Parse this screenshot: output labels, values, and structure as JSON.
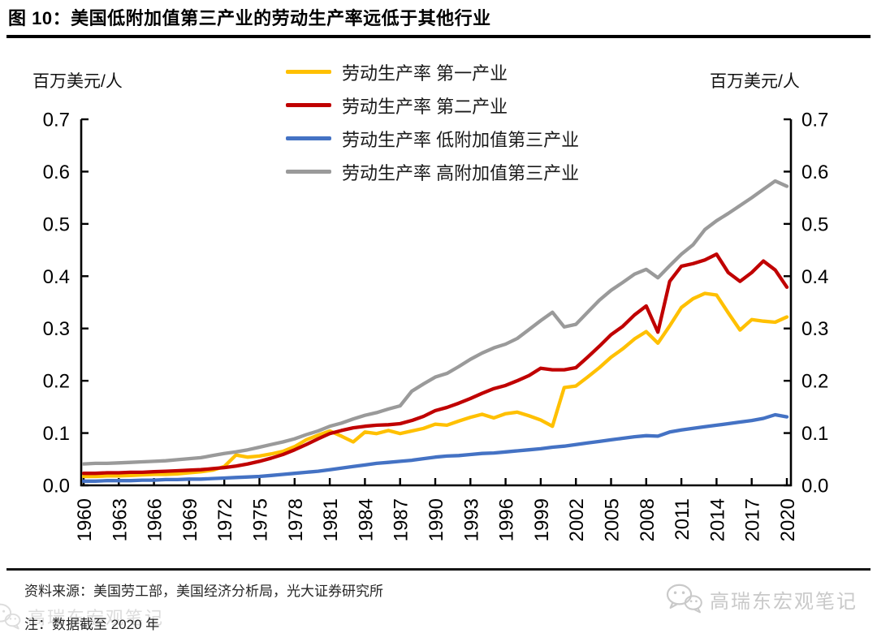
{
  "header": {
    "title": "图 10：美国低附加值第三产业的劳动生产率远低于其他行业"
  },
  "chart": {
    "left_unit": "百万美元/人",
    "right_unit": "百万美元/人"
  },
  "chart_data": {
    "type": "line",
    "title": "美国低附加值第三产业的劳动生产率远低于其他行业",
    "ylabel": "百万美元/人",
    "ylim": [
      0,
      0.7
    ],
    "ytick_step": 0.1,
    "x_label_every": 3,
    "grid": false,
    "legend_position": "top-center",
    "x": [
      1960,
      1961,
      1962,
      1963,
      1964,
      1965,
      1966,
      1967,
      1968,
      1969,
      1970,
      1971,
      1972,
      1973,
      1974,
      1975,
      1976,
      1977,
      1978,
      1979,
      1980,
      1981,
      1982,
      1983,
      1984,
      1985,
      1986,
      1987,
      1988,
      1989,
      1990,
      1991,
      1992,
      1993,
      1994,
      1995,
      1996,
      1997,
      1998,
      1999,
      2000,
      2001,
      2002,
      2003,
      2004,
      2005,
      2006,
      2007,
      2008,
      2009,
      2010,
      2011,
      2012,
      2013,
      2014,
      2015,
      2016,
      2017,
      2018,
      2019,
      2020
    ],
    "series": [
      {
        "id": "primary",
        "name": "劳动生产率 第一产业",
        "color": "#FFC000",
        "values": [
          0.017,
          0.017,
          0.018,
          0.018,
          0.019,
          0.02,
          0.021,
          0.021,
          0.022,
          0.024,
          0.026,
          0.029,
          0.036,
          0.058,
          0.054,
          0.056,
          0.06,
          0.065,
          0.074,
          0.087,
          0.096,
          0.104,
          0.094,
          0.083,
          0.102,
          0.099,
          0.105,
          0.099,
          0.104,
          0.109,
          0.117,
          0.115,
          0.123,
          0.13,
          0.136,
          0.129,
          0.137,
          0.14,
          0.133,
          0.125,
          0.113,
          0.187,
          0.19,
          0.207,
          0.225,
          0.245,
          0.261,
          0.28,
          0.294,
          0.272,
          0.305,
          0.34,
          0.357,
          0.367,
          0.364,
          0.33,
          0.297,
          0.317,
          0.314,
          0.312,
          0.322
        ]
      },
      {
        "id": "secondary",
        "name": "劳动生产率 第二产业",
        "color": "#C00000",
        "values": [
          0.023,
          0.023,
          0.024,
          0.024,
          0.025,
          0.025,
          0.026,
          0.027,
          0.028,
          0.029,
          0.03,
          0.032,
          0.034,
          0.037,
          0.041,
          0.046,
          0.052,
          0.059,
          0.068,
          0.078,
          0.089,
          0.099,
          0.105,
          0.11,
          0.113,
          0.115,
          0.116,
          0.118,
          0.124,
          0.132,
          0.143,
          0.149,
          0.157,
          0.166,
          0.176,
          0.185,
          0.191,
          0.2,
          0.21,
          0.224,
          0.221,
          0.221,
          0.225,
          0.245,
          0.266,
          0.288,
          0.304,
          0.326,
          0.343,
          0.293,
          0.39,
          0.419,
          0.424,
          0.431,
          0.442,
          0.407,
          0.39,
          0.407,
          0.429,
          0.412,
          0.379
        ]
      },
      {
        "id": "tertiary-low",
        "name": "劳动生产率 低附加值第三产业",
        "color": "#4472C4",
        "values": [
          0.008,
          0.008,
          0.009,
          0.009,
          0.009,
          0.01,
          0.01,
          0.011,
          0.011,
          0.012,
          0.012,
          0.013,
          0.014,
          0.015,
          0.016,
          0.017,
          0.019,
          0.021,
          0.023,
          0.025,
          0.027,
          0.03,
          0.033,
          0.036,
          0.039,
          0.042,
          0.044,
          0.046,
          0.048,
          0.051,
          0.054,
          0.056,
          0.057,
          0.059,
          0.061,
          0.062,
          0.064,
          0.066,
          0.068,
          0.07,
          0.073,
          0.075,
          0.078,
          0.081,
          0.084,
          0.087,
          0.09,
          0.093,
          0.095,
          0.094,
          0.102,
          0.106,
          0.109,
          0.112,
          0.115,
          0.118,
          0.121,
          0.124,
          0.128,
          0.135,
          0.131
        ]
      },
      {
        "id": "tertiary-high",
        "name": "劳动生产率 高附加值第三产业",
        "color": "#9A9A9A",
        "values": [
          0.041,
          0.042,
          0.042,
          0.043,
          0.044,
          0.045,
          0.046,
          0.047,
          0.049,
          0.051,
          0.053,
          0.057,
          0.061,
          0.064,
          0.068,
          0.073,
          0.078,
          0.083,
          0.089,
          0.097,
          0.104,
          0.113,
          0.119,
          0.127,
          0.134,
          0.139,
          0.146,
          0.152,
          0.18,
          0.194,
          0.207,
          0.214,
          0.227,
          0.241,
          0.253,
          0.263,
          0.27,
          0.281,
          0.298,
          0.315,
          0.331,
          0.303,
          0.308,
          0.331,
          0.354,
          0.373,
          0.388,
          0.404,
          0.413,
          0.397,
          0.42,
          0.442,
          0.46,
          0.489,
          0.506,
          0.52,
          0.535,
          0.55,
          0.566,
          0.582,
          0.572
        ]
      }
    ]
  },
  "footer": {
    "source": "资料来源：美国劳工部，美国经济分析局，光大证券研究所",
    "note": "注：数据截至 2020 年",
    "watermark": "高瑞东宏观笔记"
  }
}
